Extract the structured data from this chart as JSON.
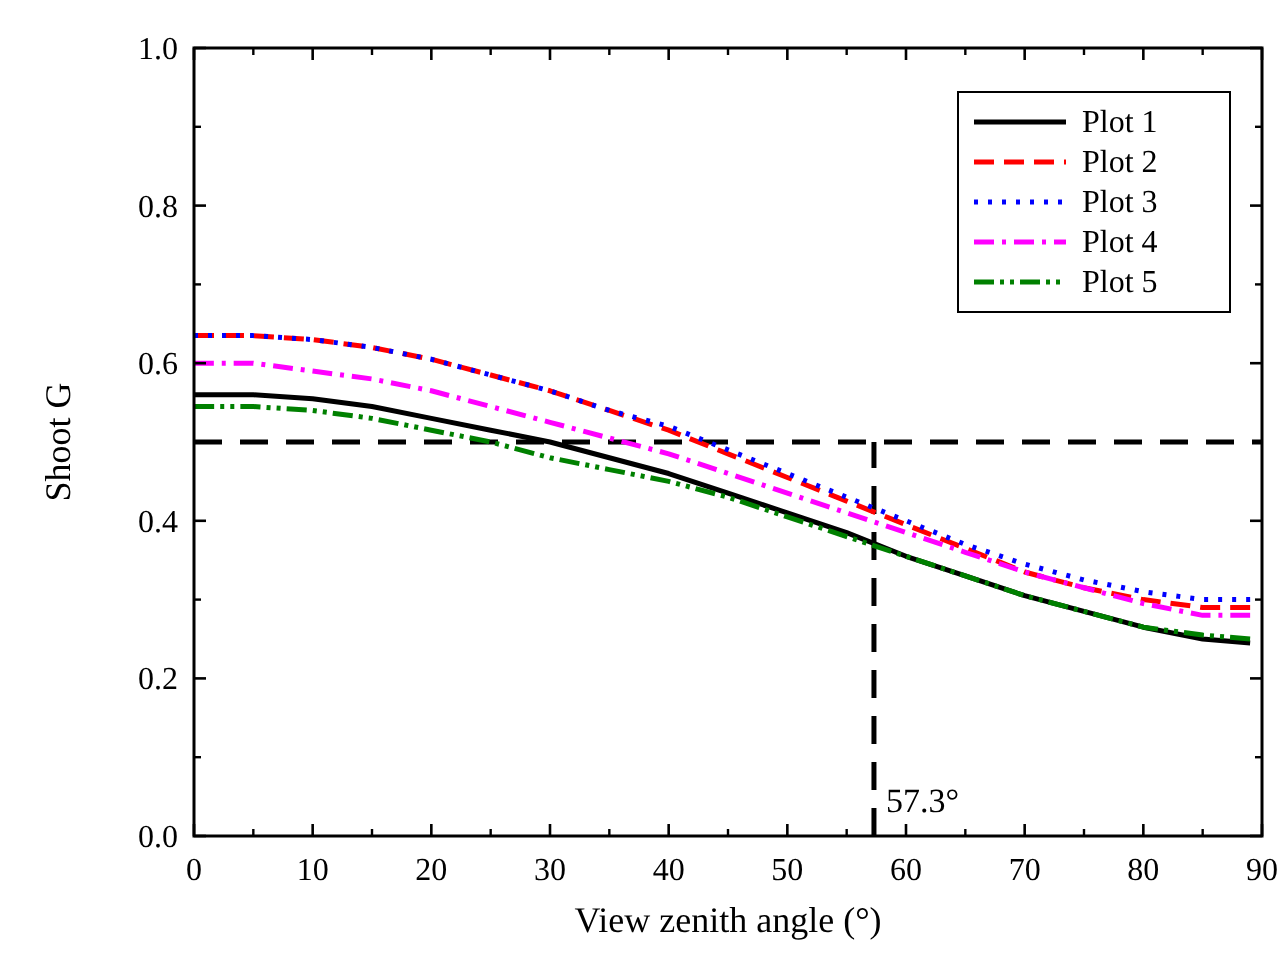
{
  "chart_data": {
    "type": "line",
    "xlabel": "View zenith angle (°)",
    "ylabel": "Shoot G",
    "x": [
      0,
      5,
      10,
      15,
      20,
      25,
      30,
      35,
      40,
      45,
      50,
      55,
      60,
      65,
      70,
      75,
      80,
      85,
      89
    ],
    "series": [
      {
        "name": "Plot 1",
        "color": "#000000",
        "line_style": "solid",
        "values": [
          0.56,
          0.56,
          0.555,
          0.545,
          0.53,
          0.515,
          0.5,
          0.48,
          0.46,
          0.435,
          0.41,
          0.385,
          0.355,
          0.33,
          0.305,
          0.285,
          0.265,
          0.25,
          0.245
        ]
      },
      {
        "name": "Plot 2",
        "color": "#ff0000",
        "line_style": "dashed",
        "values": [
          0.635,
          0.635,
          0.63,
          0.62,
          0.605,
          0.585,
          0.565,
          0.54,
          0.515,
          0.485,
          0.455,
          0.425,
          0.395,
          0.365,
          0.335,
          0.315,
          0.3,
          0.29,
          0.29
        ]
      },
      {
        "name": "Plot 3",
        "color": "#0000ff",
        "line_style": "dotted",
        "values": [
          0.635,
          0.635,
          0.63,
          0.62,
          0.605,
          0.585,
          0.565,
          0.54,
          0.52,
          0.49,
          0.46,
          0.43,
          0.4,
          0.37,
          0.345,
          0.325,
          0.31,
          0.3,
          0.3
        ]
      },
      {
        "name": "Plot 4",
        "color": "#ff00ff",
        "line_style": "dashdot",
        "values": [
          0.6,
          0.6,
          0.59,
          0.58,
          0.565,
          0.545,
          0.525,
          0.505,
          0.485,
          0.46,
          0.435,
          0.41,
          0.385,
          0.36,
          0.335,
          0.315,
          0.295,
          0.28,
          0.28
        ]
      },
      {
        "name": "Plot 5",
        "color": "#008000",
        "line_style": "dashdotdot",
        "values": [
          0.545,
          0.545,
          0.54,
          0.53,
          0.515,
          0.5,
          0.48,
          0.465,
          0.45,
          0.43,
          0.405,
          0.38,
          0.355,
          0.33,
          0.305,
          0.285,
          0.265,
          0.255,
          0.25
        ]
      }
    ],
    "xlim": [
      0,
      90
    ],
    "xticks": [
      0,
      10,
      20,
      30,
      40,
      50,
      60,
      70,
      80,
      90
    ],
    "ylim": [
      0,
      1
    ],
    "yticks": [
      {
        "value": 0,
        "label": "0.0"
      },
      0.2,
      0.4,
      0.6,
      0.8,
      {
        "value": 1,
        "label": "1.0"
      }
    ],
    "ref_lines": [
      {
        "axis": "y",
        "value": 0.5,
        "line_style": "dashed",
        "color": "#000000"
      },
      {
        "axis": "x",
        "value": 57.3,
        "label": "57.3°",
        "line_style": "dashed",
        "color": "#000000"
      }
    ],
    "grid": false,
    "legend": "top right"
  }
}
